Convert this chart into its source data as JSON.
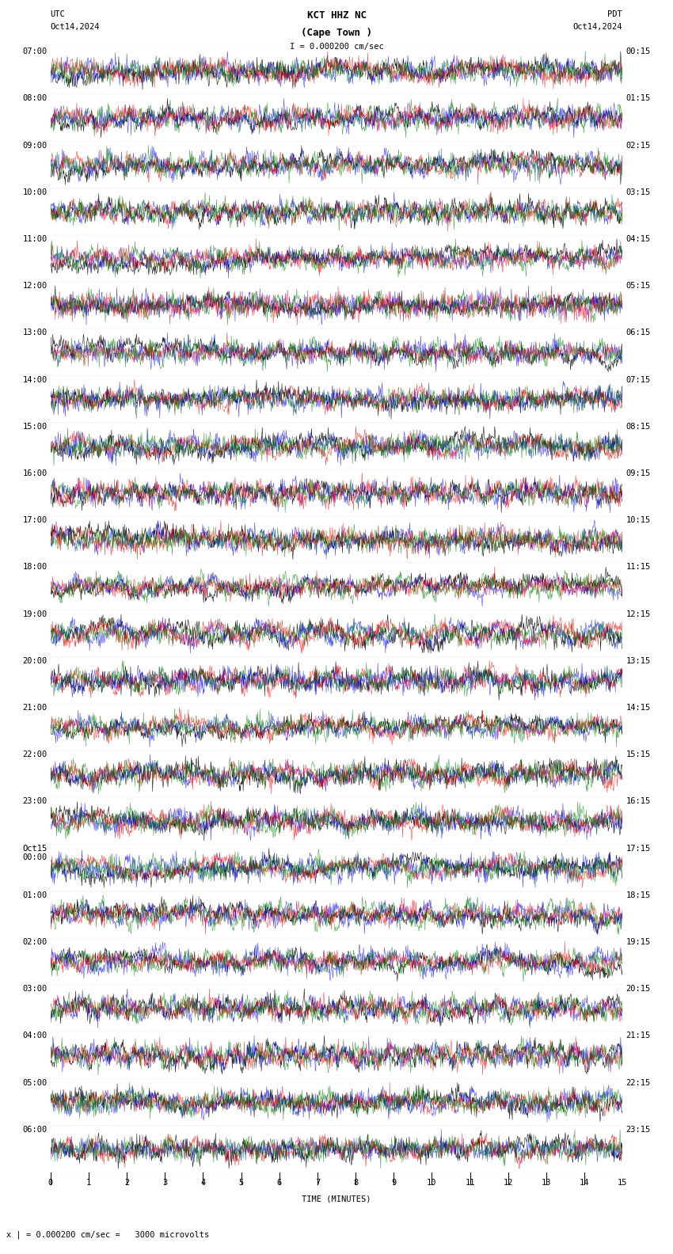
{
  "title_line1": "KCT HHZ NC",
  "title_line2": "(Cape Town )",
  "scale_label": "I = 0.000200 cm/sec",
  "label_left_top": "UTC",
  "label_left_date": "Oct14,2024",
  "label_right_top": "PDT",
  "label_right_date": "Oct14,2024",
  "bottom_label": "TIME (MINUTES)",
  "bottom_note": "x | = 0.000200 cm/sec =   3000 microvolts",
  "left_labels": [
    "07:00",
    "08:00",
    "09:00",
    "10:00",
    "11:00",
    "12:00",
    "13:00",
    "14:00",
    "15:00",
    "16:00",
    "17:00",
    "18:00",
    "19:00",
    "20:00",
    "21:00",
    "22:00",
    "23:00",
    "Oct15\n00:00",
    "01:00",
    "02:00",
    "03:00",
    "04:00",
    "05:00",
    "06:00"
  ],
  "right_labels": [
    "00:15",
    "01:15",
    "02:15",
    "03:15",
    "04:15",
    "05:15",
    "06:15",
    "07:15",
    "08:15",
    "09:15",
    "10:15",
    "11:15",
    "12:15",
    "13:15",
    "14:15",
    "15:15",
    "16:15",
    "17:15",
    "18:15",
    "19:15",
    "20:15",
    "21:15",
    "22:15",
    "23:15"
  ],
  "n_rows": 24,
  "minutes_per_row": 60,
  "bg_color": "#ffffff",
  "trace_colors": [
    "blue",
    "red",
    "green",
    "black"
  ],
  "font_size_labels": 7.5,
  "font_size_title": 9,
  "font_family": "monospace"
}
